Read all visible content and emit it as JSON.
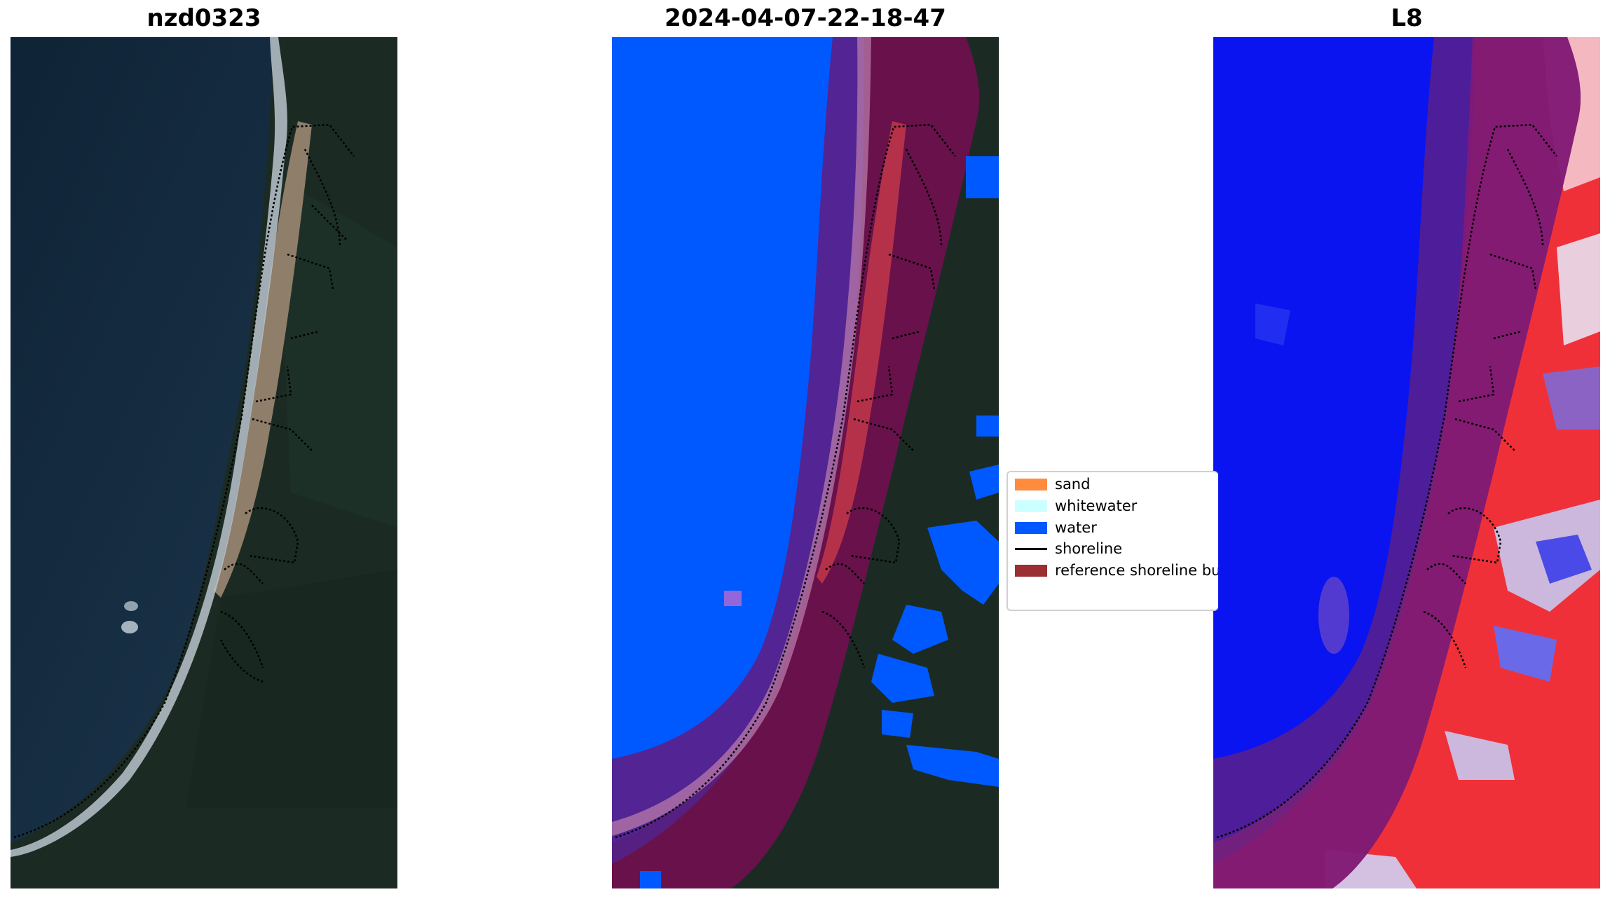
{
  "panels": [
    {
      "title": "nzd0323"
    },
    {
      "title": "2024-04-07-22-18-47"
    },
    {
      "title": "L8"
    }
  ],
  "legend": {
    "items": [
      {
        "label": "sand",
        "color": "#ff8c3c",
        "kind": "patch"
      },
      {
        "label": "whitewater",
        "color": "#ccffff",
        "kind": "patch"
      },
      {
        "label": "water",
        "color": "#0059ff",
        "kind": "patch"
      },
      {
        "label": "shoreline",
        "color": "#000000",
        "kind": "line"
      },
      {
        "label": "reference shoreline bu",
        "color": "#9a2e30",
        "kind": "patch"
      }
    ]
  },
  "colors": {
    "ocean": "#142a3c",
    "forest": "#1a2a22",
    "water_class": "#0059ff",
    "buffer": "#6a1050",
    "ndwi_water": "#0a14f0",
    "ndwi_land": "#f02830"
  }
}
